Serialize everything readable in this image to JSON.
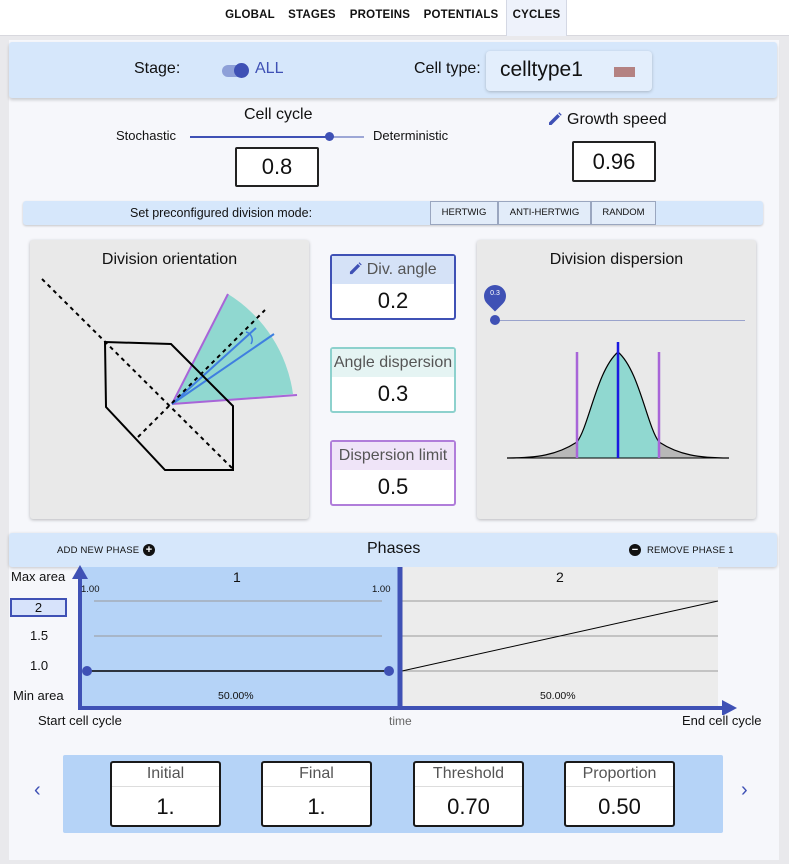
{
  "tabs": [
    {
      "label": "GLOBAL",
      "active": false
    },
    {
      "label": "STAGES",
      "active": false
    },
    {
      "label": "PROTEINS",
      "active": false
    },
    {
      "label": "POTENTIALS",
      "active": false
    },
    {
      "label": "CYCLES",
      "active": true
    }
  ],
  "stage": {
    "label": "Stage:",
    "toggle_value": "ALL"
  },
  "celltype": {
    "label": "Cell type:",
    "value": "celltype1",
    "swatch_color": "#b48282"
  },
  "cell_cycle": {
    "title": "Cell cycle",
    "left_label": "Stochastic",
    "right_label": "Deterministic",
    "value": "0.8",
    "slider_fraction": 0.8
  },
  "growth_speed": {
    "label": "Growth speed",
    "value": "0.96"
  },
  "division_mode": {
    "label": "Set preconfigured division mode:",
    "buttons": [
      "HERTWIG",
      "ANTI-HERTWIG",
      "RANDOM"
    ]
  },
  "division_orientation": {
    "title": "Division orientation"
  },
  "params": {
    "div_angle": {
      "label": "Div. angle",
      "value": "0.2",
      "color": "#3f51b5"
    },
    "angle_dispersion": {
      "label": "Angle dispersion",
      "value": "0.3",
      "color": "#7ecfcf"
    },
    "dispersion_limit": {
      "label": "Dispersion limit",
      "value": "0.5",
      "color": "#a865d8"
    }
  },
  "division_dispersion": {
    "title": "Division dispersion",
    "slider_value": "0.3",
    "slider_fraction": 0.0
  },
  "phases": {
    "title": "Phases",
    "add_label": "ADD NEW PHASE",
    "remove_label": "REMOVE PHASE 1",
    "y_labels": {
      "max": "Max area",
      "selected": "2",
      "mid": "1.5",
      "one": "1.0",
      "min": "Min area"
    },
    "x_labels": {
      "start": "Start cell cycle",
      "middle": "time",
      "end": "End cell cycle"
    },
    "items": [
      {
        "name": "1",
        "start_value": "1.00",
        "end_value": "1.00",
        "percent": "50.00%"
      },
      {
        "name": "2",
        "percent": "50.00%"
      }
    ]
  },
  "phase_params": [
    {
      "label": "Initial",
      "value": "1."
    },
    {
      "label": "Final",
      "value": "1."
    },
    {
      "label": "Threshold",
      "value": "0.70"
    },
    {
      "label": "Proportion",
      "value": "0.50"
    }
  ],
  "nav": {
    "prev": "‹",
    "next": "›"
  },
  "icons": {
    "pencil": "pencil-icon",
    "add": "add-circle-icon",
    "remove": "remove-circle-icon"
  }
}
